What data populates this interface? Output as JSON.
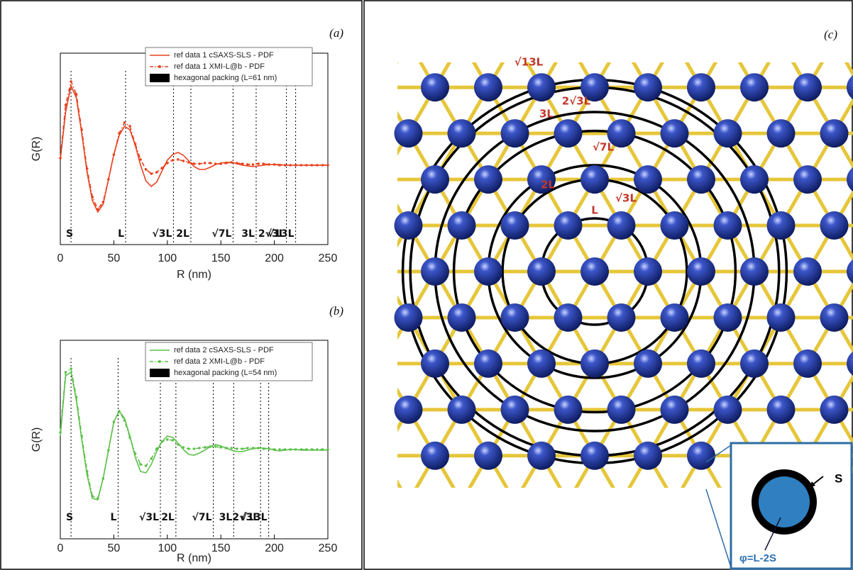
{
  "chart_data": [
    {
      "type": "line",
      "panel_label": "(a)",
      "xlabel": "R (nm)",
      "ylabel": "G(R)",
      "xlim": [
        0,
        250
      ],
      "xticks": [
        0,
        50,
        100,
        150,
        200,
        250
      ],
      "ylim": [
        -1.12,
        1.58
      ],
      "x": [
        0,
        5,
        10,
        15,
        20,
        25,
        30,
        35,
        40,
        45,
        50,
        55,
        60,
        65,
        70,
        75,
        80,
        85,
        90,
        95,
        100,
        105,
        110,
        115,
        120,
        125,
        130,
        135,
        140,
        145,
        150,
        155,
        160,
        165,
        170,
        175,
        180,
        185,
        190,
        195,
        200,
        205,
        210,
        215,
        220,
        225,
        230,
        235,
        240,
        245,
        250
      ],
      "series": [
        {
          "name": "ref data 1 cSAXS-SLS  - PDF",
          "color": "#e8411e",
          "style": "solid",
          "values": [
            0.08,
            0.75,
            1.12,
            0.95,
            0.45,
            -0.1,
            -0.5,
            -0.66,
            -0.55,
            -0.2,
            0.15,
            0.42,
            0.55,
            0.5,
            0.28,
            0,
            -0.22,
            -0.3,
            -0.24,
            -0.08,
            0.07,
            0.15,
            0.18,
            0.14,
            0.06,
            -0.02,
            -0.06,
            -0.06,
            -0.03,
            0.01,
            0.03,
            0.04,
            0.04,
            0.02,
            0,
            -0.01,
            -0.02,
            -0.01,
            0,
            0.01,
            0.01,
            0.01,
            0,
            0,
            0,
            0,
            0,
            0,
            0,
            0,
            0
          ]
        },
        {
          "name": "ref data 1 XMI-L@b - PDF",
          "color": "#e8411e",
          "style": "dash-dot-marker",
          "values": [
            0.1,
            0.85,
            1.18,
            1.0,
            0.5,
            -0.05,
            -0.45,
            -0.62,
            -0.52,
            -0.2,
            0.15,
            0.45,
            0.6,
            0.55,
            0.3,
            0.08,
            -0.06,
            -0.12,
            -0.1,
            -0.04,
            0.03,
            0.07,
            0.08,
            0.06,
            0.04,
            0.02,
            0.02,
            0.03,
            0.03,
            0.02,
            0.02,
            0.03,
            0.04,
            0.03,
            0.02,
            0.01,
            0.01,
            0.02,
            0.02,
            0.01,
            0.01,
            0,
            0,
            0,
            0,
            0,
            0,
            0,
            0,
            0,
            0
          ]
        }
      ],
      "reference_lines": {
        "name": "hexagonal packing (L=61 nm)",
        "color": "#000000",
        "x": [
          10,
          61,
          105.7,
          122,
          161.4,
          183,
          211.3,
          219.9
        ],
        "labels": [
          "S",
          "L",
          "√3L",
          "2L",
          "√7L",
          "3L",
          "2√3L",
          "√13L"
        ]
      }
    },
    {
      "type": "line",
      "panel_label": "(b)",
      "xlabel": "R (nm)",
      "ylabel": "G(R)",
      "xlim": [
        0,
        250
      ],
      "xticks": [
        0,
        50,
        100,
        150,
        200,
        250
      ],
      "ylim": [
        -1.25,
        1.55
      ],
      "x": [
        0,
        5,
        10,
        15,
        20,
        25,
        30,
        35,
        40,
        45,
        50,
        55,
        60,
        65,
        70,
        75,
        80,
        85,
        90,
        95,
        100,
        105,
        110,
        115,
        120,
        125,
        130,
        135,
        140,
        145,
        150,
        155,
        160,
        165,
        170,
        175,
        180,
        185,
        190,
        195,
        200,
        205,
        210,
        215,
        220,
        225,
        230,
        235,
        240,
        245,
        250
      ],
      "series": [
        {
          "name": "ref data 2 cSAXS-SLS - PDF",
          "color": "#5cc04a",
          "style": "solid",
          "values": [
            0.2,
            1.05,
            1.1,
            0.7,
            0.15,
            -0.35,
            -0.68,
            -0.7,
            -0.4,
            0,
            0.4,
            0.55,
            0.45,
            0.2,
            -0.1,
            -0.3,
            -0.32,
            -0.2,
            -0.02,
            0.12,
            0.2,
            0.18,
            0.1,
            0.01,
            -0.06,
            -0.07,
            -0.04,
            0,
            0.05,
            0.08,
            0.06,
            0.03,
            0,
            -0.02,
            -0.02,
            0,
            0.02,
            0.03,
            0.03,
            0.02,
            0,
            -0.01,
            0,
            0.01,
            0.01,
            0,
            0,
            0,
            0,
            0,
            0
          ]
        },
        {
          "name": "ref data 2 XMI-L@b - PDF",
          "color": "#5cc04a",
          "style": "dash-dot-marker",
          "values": [
            0.25,
            1.1,
            1.15,
            0.75,
            0.2,
            -0.3,
            -0.65,
            -0.68,
            -0.4,
            0,
            0.4,
            0.55,
            0.42,
            0.18,
            -0.05,
            -0.2,
            -0.22,
            -0.12,
            0.02,
            0.12,
            0.15,
            0.14,
            0.08,
            0.04,
            0.02,
            0.02,
            0.03,
            0.04,
            0.05,
            0.05,
            0.04,
            0.03,
            0.03,
            0.02,
            0.02,
            0.03,
            0.03,
            0.03,
            0.02,
            0.02,
            0.01,
            0.01,
            0.01,
            0.01,
            0.01,
            0.01,
            0.01,
            0.01,
            0.01,
            0.01,
            0.01
          ]
        }
      ],
      "reference_lines": {
        "name": "hexagonal packing (L=54 nm)",
        "color": "#000000",
        "x": [
          10,
          54,
          93.5,
          108,
          142.9,
          162,
          187.1,
          194.7
        ],
        "labels": [
          "S",
          "L",
          "√3L",
          "2L",
          "√7L",
          "3L",
          "2√3L",
          "√13L"
        ]
      }
    }
  ],
  "diagram": {
    "panel_label": "(c)",
    "ring_labels": [
      "L",
      "√3L",
      "2L",
      "√7L",
      "3L",
      "2√3L",
      "√13L"
    ],
    "inset": {
      "shell_label": "S",
      "core_label": "φ=L-2S"
    }
  }
}
